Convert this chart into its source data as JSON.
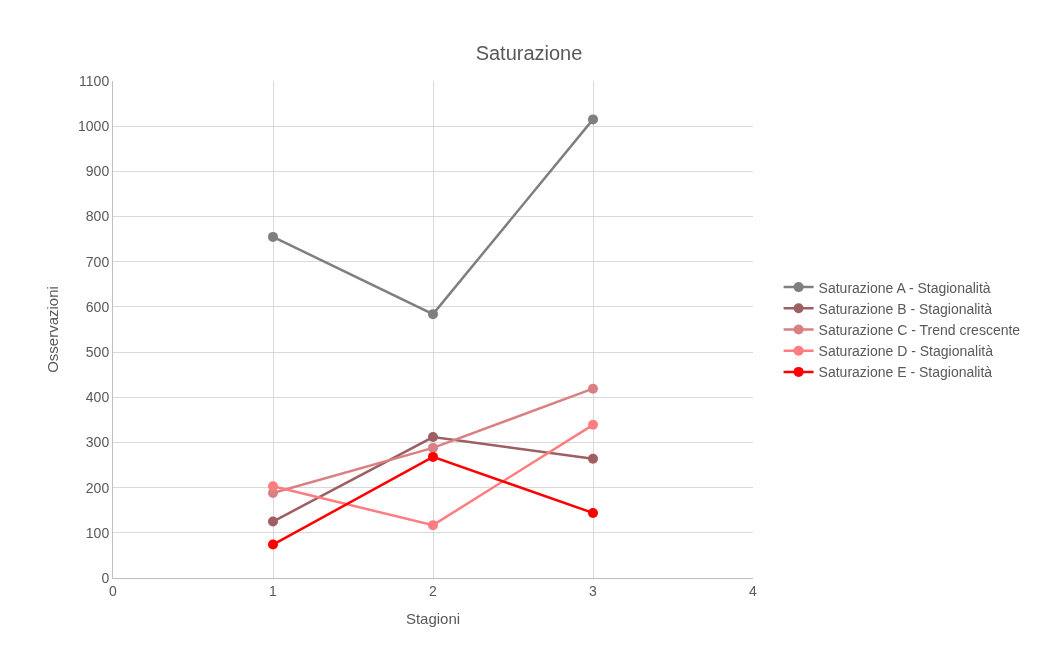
{
  "chart_data": {
    "type": "line",
    "title": "Saturazione",
    "xlabel": "Stagioni",
    "ylabel": "Osservazioni",
    "x": [
      1,
      2,
      3
    ],
    "series": [
      {
        "name": "Saturazione A - Stagionalità",
        "color": "#7f7f7f",
        "values": [
          755,
          584,
          1015
        ]
      },
      {
        "name": "Saturazione B - Stagionalità",
        "color": "#9e5f63",
        "values": [
          125,
          312,
          264
        ]
      },
      {
        "name": "Saturazione C - Trend crescente",
        "color": "#d98082",
        "values": [
          188,
          288,
          419
        ]
      },
      {
        "name": "Saturazione D - Stagionalità",
        "color": "#ff7c80",
        "values": [
          203,
          117,
          339
        ]
      },
      {
        "name": "Saturazione E - Stagionalità",
        "color": "#ff0000",
        "values": [
          74,
          268,
          144
        ]
      }
    ],
    "xlim": [
      0,
      4
    ],
    "xticks": [
      0,
      1,
      2,
      3,
      4
    ],
    "ylim": [
      0,
      1100
    ],
    "yticks": [
      0,
      100,
      200,
      300,
      400,
      500,
      600,
      700,
      800,
      900,
      1000,
      1100
    ],
    "grid": true,
    "legend": "right",
    "marker": "circle",
    "line_style": "solid"
  }
}
